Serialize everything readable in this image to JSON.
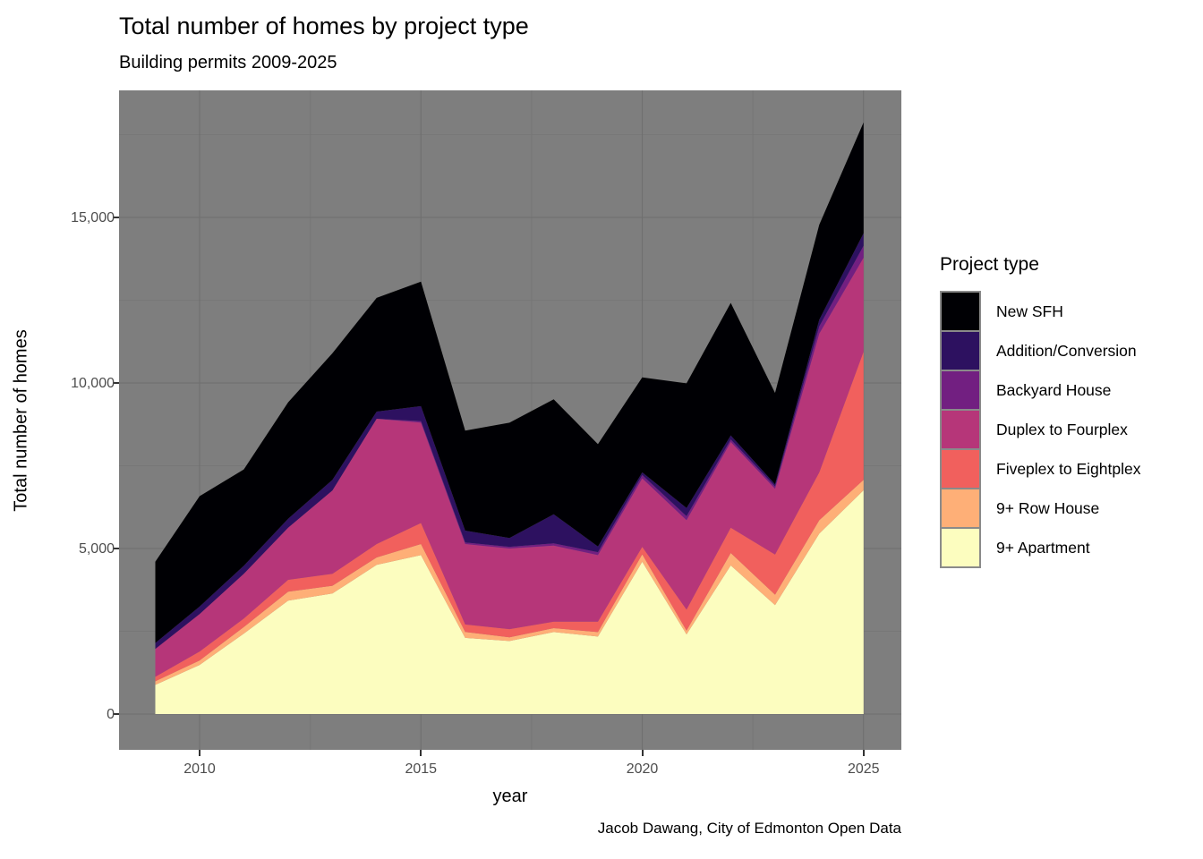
{
  "header": {
    "title": "Total number of homes by project type",
    "subtitle": "Building permits 2009-2025"
  },
  "caption": "Jacob Dawang, City of Edmonton Open Data",
  "axes": {
    "x": {
      "label": "year",
      "ticks": [
        "2010",
        "2015",
        "2020",
        "2025"
      ],
      "tick_values": [
        2010,
        2015,
        2020,
        2025
      ]
    },
    "y": {
      "label": "Total number of homes",
      "ticks": [
        "15,000",
        "10,000",
        "5,000",
        "0"
      ],
      "tick_values": [
        15000,
        10000,
        5000,
        0
      ]
    }
  },
  "legend": {
    "title": "Project type"
  },
  "colors": {
    "panel_background": "#7E7E7E",
    "grid_major": "#6F6F6F",
    "grid_minor": "#777777",
    "axis_text": "#4D4D4D",
    "tick_mark": "#333333",
    "legend_key_border": "#8A8A8A"
  },
  "chart_data": {
    "type": "area",
    "stacked": true,
    "stacking": "series listed in legend order; stack is drawn bottom-to-top in reverse of this list",
    "title": "Total number of homes by project type",
    "subtitle": "Building permits 2009-2025",
    "xlabel": "year",
    "ylabel": "Total number of homes",
    "legend_title": "Project type",
    "legend_position": "right",
    "grid": true,
    "xlim": [
      2008.2,
      2025.8
    ],
    "ylim": [
      -940,
      18790
    ],
    "x": [
      2009,
      2010,
      2011,
      2012,
      2013,
      2014,
      2015,
      2016,
      2017,
      2018,
      2019,
      2020,
      2021,
      2022,
      2023,
      2024,
      2025
    ],
    "series": [
      {
        "name": "New SFH",
        "color": "#000004",
        "values": [
          2455,
          3335,
          2910,
          3515,
          3825,
          3435,
          3760,
          3020,
          3485,
          3470,
          3090,
          2870,
          3765,
          4005,
          2760,
          2870,
          3345
        ]
      },
      {
        "name": "Addition/Conversion",
        "color": "#2D1160",
        "values": [
          180,
          225,
          245,
          270,
          320,
          215,
          450,
          355,
          265,
          880,
          170,
          80,
          250,
          120,
          65,
          200,
          380
        ]
      },
      {
        "name": "Backyard House",
        "color": "#721F81",
        "values": [
          0,
          0,
          0,
          0,
          0,
          0,
          50,
          50,
          50,
          65,
          90,
          100,
          120,
          80,
          70,
          220,
          360
        ]
      },
      {
        "name": "Duplex to Fourplex",
        "color": "#B63679",
        "values": [
          840,
          1130,
          1350,
          1575,
          2520,
          3785,
          3030,
          2430,
          2435,
          2300,
          2010,
          2070,
          2700,
          2585,
          1985,
          4190,
          2840
        ]
      },
      {
        "name": "Fiveplex to Eightplex",
        "color": "#F1605D",
        "values": [
          135,
          270,
          255,
          360,
          360,
          405,
          635,
          225,
          250,
          195,
          315,
          225,
          635,
          765,
          1215,
          1445,
          3870
        ]
      },
      {
        "name": "9+ Row House",
        "color": "#FEAF77",
        "values": [
          110,
          135,
          200,
          270,
          235,
          225,
          335,
          180,
          110,
          120,
          135,
          225,
          115,
          375,
          315,
          405,
          315
        ]
      },
      {
        "name": "9+ Apartment",
        "color": "#FCFDBF",
        "values": [
          880,
          1485,
          2430,
          3425,
          3640,
          4505,
          4800,
          2300,
          2205,
          2475,
          2340,
          4600,
          2405,
          4490,
          3290,
          5450,
          6760
        ]
      }
    ]
  }
}
